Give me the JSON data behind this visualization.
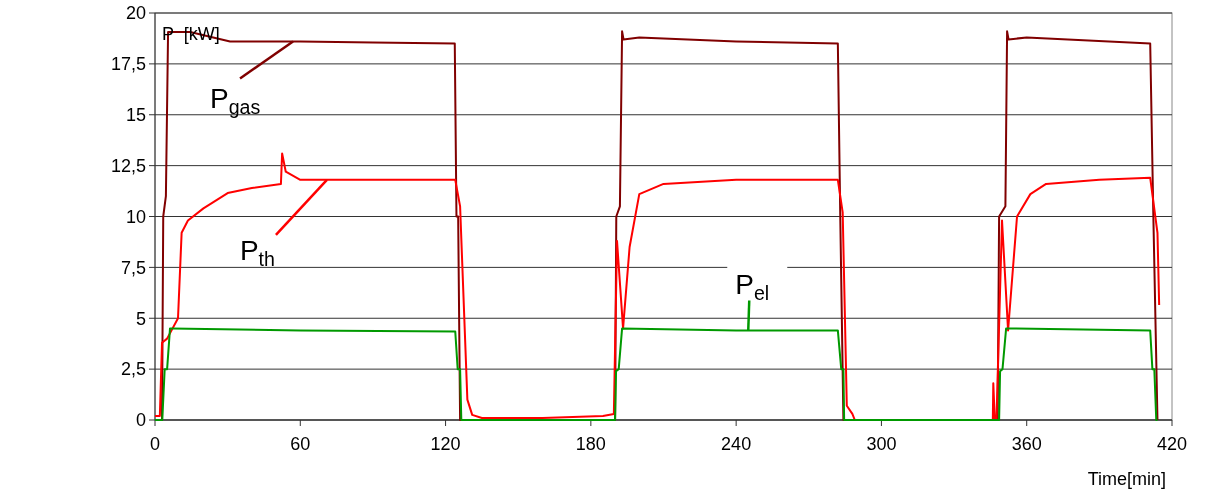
{
  "chart_data": {
    "type": "line",
    "xlabel": "Time[min]",
    "ylabel": "P  [kW]",
    "xlim": [
      0,
      420
    ],
    "xticks": [
      0,
      60,
      120,
      180,
      240,
      300,
      360,
      420
    ],
    "ylim": [
      0,
      20
    ],
    "yticks": [
      0,
      {
        "value": 2.5,
        "label": "2,5"
      },
      5,
      {
        "value": 7.5,
        "label": "7,5"
      },
      10,
      {
        "value": 12.5,
        "label": "12,5"
      },
      15,
      {
        "value": 17.5,
        "label": "17,5"
      },
      20
    ],
    "grid": "y",
    "marker": "none",
    "line_style": "solid",
    "series": [
      {
        "color": "#800000",
        "x": [
          0,
          2.9,
          3.4,
          4.5,
          5.4,
          14.5,
          31,
          60,
          90,
          123.8,
          124.5,
          125.2,
          126,
          190,
          190.5,
          192,
          192.9,
          193.5,
          200,
          240,
          282,
          283,
          284.3,
          285,
          348,
          348.6,
          351.2,
          351.9,
          352.5,
          360,
          411,
          412.3,
          414
        ],
        "values": [
          0,
          0,
          10,
          11,
          19.07,
          19.07,
          18.6,
          18.6,
          18.55,
          18.5,
          10,
          10,
          0,
          0,
          10,
          10.5,
          19.1,
          18.7,
          18.8,
          18.6,
          18.5,
          10,
          0,
          0,
          0,
          10,
          10.5,
          19.1,
          18.7,
          18.8,
          18.5,
          10,
          0
        ]
      },
      {
        "color": "#ff0000",
        "x": [
          0,
          2,
          2.9,
          5,
          9.5,
          11,
          13.6,
          20,
          30,
          40,
          52,
          52.5,
          54,
          60,
          90,
          124,
          126,
          129,
          131,
          135,
          160,
          185,
          189.5,
          190.8,
          193.3,
          196,
          200,
          210,
          240,
          282,
          284,
          285.7,
          288,
          289,
          346,
          346.2,
          346.8,
          347.5,
          349.8,
          352.3,
          356,
          361.5,
          368,
          390,
          411,
          414,
          414.7
        ],
        "values": [
          0.2,
          0.2,
          3.8,
          4,
          5,
          9.2,
          9.8,
          10.4,
          11.15,
          11.4,
          11.6,
          13.1,
          12.2,
          11.8,
          11.8,
          11.8,
          10.5,
          1,
          0.25,
          0.1,
          0.1,
          0.2,
          0.3,
          8.8,
          4.5,
          8.5,
          11.1,
          11.6,
          11.8,
          11.8,
          10.2,
          0.7,
          0.3,
          0,
          0,
          1.8,
          0,
          0,
          9.8,
          4.4,
          10,
          11.1,
          11.6,
          11.8,
          11.9,
          9.2,
          5.65
        ]
      },
      {
        "color": "#009900",
        "x": [
          0,
          3,
          4,
          5,
          6.2,
          7,
          60,
          124,
          125,
          126,
          126.5,
          190,
          190.4,
          191.5,
          192.9,
          240,
          282,
          283.4,
          284.3,
          284.6,
          348.6,
          349,
          350,
          351.5,
          411,
          411.9,
          412.7,
          413.5,
          414
        ],
        "values": [
          0,
          0,
          2.5,
          2.5,
          4.5,
          4.5,
          4.4,
          4.35,
          2.5,
          2.5,
          0,
          0,
          2.4,
          2.5,
          4.5,
          4.4,
          4.4,
          2.5,
          2.5,
          0,
          0,
          2.4,
          2.5,
          4.5,
          4.4,
          2.5,
          2.5,
          0,
          0
        ]
      }
    ],
    "annotations": [
      {
        "text": "P$_{gas}$",
        "x": 57,
        "y": 18.6
      },
      {
        "text": "P$_{th}$",
        "x": 71,
        "y": 11.8
      },
      {
        "text": "P$_{el}$",
        "x": 245,
        "y": 4.4
      }
    ]
  }
}
